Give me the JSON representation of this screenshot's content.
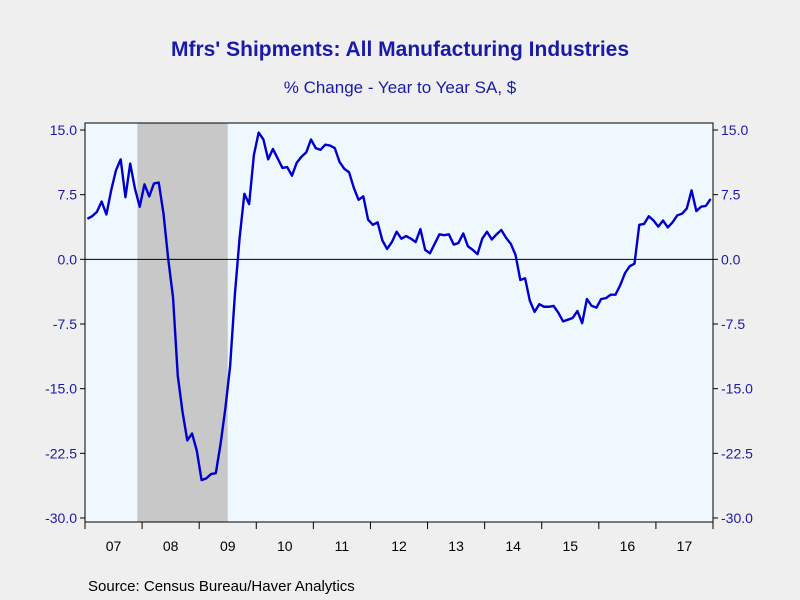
{
  "title": "Mfrs' Shipments: All Manufacturing Industries",
  "subtitle": "% Change - Year to Year     SA, $",
  "source": "Source:  Census Bureau/Haver Analytics",
  "colors": {
    "line": "#0000cc",
    "plot_bg": "#f0f8ff",
    "recession": "#c8c8c8",
    "text": "#1a1aa6"
  },
  "chart_data": {
    "type": "line",
    "ylim": [
      -30,
      15
    ],
    "yticks": [
      15.0,
      7.5,
      0.0,
      -7.5,
      -15.0,
      -22.5,
      -30.0
    ],
    "yticklabels": [
      "15.0",
      "7.5",
      "0.0",
      "-7.5",
      "-15.0",
      "-22.5",
      "-30.0"
    ],
    "xticklabels": [
      "07",
      "08",
      "09",
      "10",
      "11",
      "12",
      "13",
      "14",
      "15",
      "16",
      "17"
    ],
    "xlim": [
      "2007-01",
      "2017-12"
    ],
    "recession": [
      "2007-12",
      "2009-06"
    ],
    "series": [
      {
        "values": [
          4.7,
          5.0,
          5.5,
          6.7,
          5.2,
          8.0,
          10.3,
          11.6,
          7.2,
          11.1,
          8.2,
          6.1,
          8.7,
          7.3,
          8.8,
          8.9,
          5.3,
          0.0,
          -4.4,
          -13.5,
          -17.7,
          -21.0,
          -20.2,
          -22.2,
          -25.6,
          -25.4,
          -24.9,
          -24.8,
          -21.4,
          -17.3,
          -12.4,
          -4.1,
          2.5,
          7.6,
          6.4,
          12.1,
          14.7,
          13.9,
          11.6,
          12.8,
          11.7,
          10.6,
          10.7,
          9.7,
          11.2,
          11.9,
          12.4,
          13.9,
          12.9,
          12.7,
          13.3,
          13.2,
          12.9,
          11.3,
          10.5,
          10.1,
          8.3,
          6.9,
          7.3,
          4.6,
          4.0,
          4.3,
          2.2,
          1.2,
          2.0,
          3.2,
          2.4,
          2.7,
          2.4,
          2.0,
          3.5,
          1.1,
          0.7,
          1.8,
          2.9,
          2.8,
          2.9,
          1.7,
          1.9,
          3.0,
          1.5,
          1.1,
          0.6,
          2.4,
          3.2,
          2.3,
          2.9,
          3.4,
          2.5,
          1.8,
          0.5,
          -2.4,
          -2.2,
          -4.8,
          -6.1,
          -5.2,
          -5.5,
          -5.5,
          -5.4,
          -6.2,
          -7.2,
          -7.0,
          -6.8,
          -6.0,
          -7.4,
          -4.6,
          -5.4,
          -5.6,
          -4.6,
          -4.5,
          -4.1,
          -4.1,
          -3.0,
          -1.6,
          -0.8,
          -0.5,
          4.0,
          4.1,
          5.0,
          4.5,
          3.8,
          4.5,
          3.7,
          4.3,
          5.1,
          5.3,
          5.9,
          8.0,
          5.6,
          6.1,
          6.2,
          7.0
        ]
      }
    ]
  }
}
